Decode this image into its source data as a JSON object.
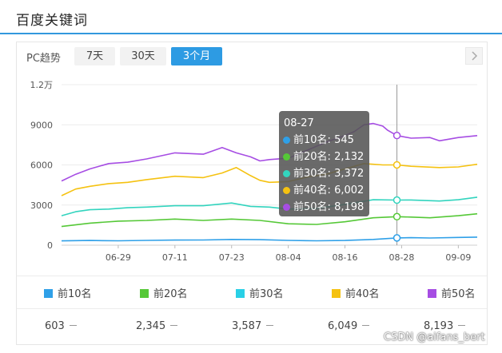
{
  "panel": {
    "title": "百度关键词"
  },
  "toolbar": {
    "device_label": "PC趋势",
    "tabs": [
      {
        "label": "7天",
        "active": false
      },
      {
        "label": "30天",
        "active": false
      },
      {
        "label": "3个月",
        "active": true
      }
    ],
    "next_icon": "chevron-right-icon"
  },
  "chart_data": {
    "type": "line",
    "title": "",
    "xlabel": "",
    "ylabel": "",
    "ylim": [
      0,
      12000
    ],
    "y_ticks": [
      0,
      3000,
      6000,
      9000,
      12000
    ],
    "y_tick_labels": [
      "0",
      "3000",
      "6000",
      "9000",
      "1.2万"
    ],
    "grid": true,
    "x_start": "06-17",
    "x_end": "09-13",
    "x_ticks": [
      {
        "day": 12,
        "label": "06-29"
      },
      {
        "day": 24,
        "label": "07-11"
      },
      {
        "day": 36,
        "label": "07-23"
      },
      {
        "day": 48,
        "label": "08-04"
      },
      {
        "day": 60,
        "label": "08-16"
      },
      {
        "day": 72,
        "label": "08-28"
      },
      {
        "day": 84,
        "label": "09-09"
      }
    ],
    "series": [
      {
        "name": "前10名",
        "color": "#2fa0e8",
        "x": [
          0,
          6,
          12,
          18,
          24,
          30,
          36,
          42,
          48,
          54,
          60,
          66,
          71,
          74,
          78,
          84,
          88
        ],
        "values": [
          320,
          350,
          330,
          360,
          380,
          390,
          430,
          410,
          360,
          330,
          350,
          430,
          545,
          560,
          540,
          580,
          603
        ]
      },
      {
        "name": "前20名",
        "color": "#55c837",
        "x": [
          0,
          6,
          12,
          18,
          24,
          30,
          36,
          42,
          48,
          54,
          60,
          66,
          71,
          74,
          78,
          84,
          88
        ],
        "values": [
          1400,
          1650,
          1800,
          1850,
          1950,
          1850,
          1950,
          1850,
          1600,
          1550,
          1750,
          2050,
          2132,
          2100,
          2050,
          2200,
          2345
        ]
      },
      {
        "name": "前30名",
        "color": "#32d4be",
        "x": [
          0,
          3,
          6,
          10,
          14,
          18,
          24,
          30,
          36,
          40,
          44,
          48,
          54,
          60,
          66,
          71,
          74,
          80,
          84,
          88
        ],
        "values": [
          2200,
          2500,
          2650,
          2700,
          2800,
          2850,
          2950,
          2950,
          3150,
          2900,
          2850,
          2700,
          2750,
          3050,
          3400,
          3372,
          3380,
          3300,
          3400,
          3587
        ]
      },
      {
        "name": "前40名",
        "color": "#f5c211",
        "x": [
          0,
          3,
          6,
          10,
          14,
          18,
          24,
          30,
          34,
          37,
          40,
          42,
          44,
          48,
          52,
          56,
          60,
          64,
          68,
          71,
          74,
          80,
          84,
          88
        ],
        "values": [
          3700,
          4200,
          4400,
          4600,
          4700,
          4900,
          5150,
          5050,
          5400,
          5800,
          5200,
          4850,
          4700,
          4750,
          5100,
          5300,
          5700,
          6100,
          6000,
          6002,
          5900,
          5800,
          5850,
          6049
        ]
      },
      {
        "name": "前50名",
        "color": "#a64de3",
        "x": [
          0,
          3,
          6,
          10,
          14,
          18,
          24,
          30,
          34,
          37,
          40,
          42,
          44,
          48,
          52,
          56,
          60,
          62,
          64,
          66,
          68,
          69,
          71,
          74,
          78,
          80,
          84,
          88
        ],
        "values": [
          4800,
          5300,
          5700,
          6100,
          6200,
          6450,
          6900,
          6800,
          7300,
          6900,
          6600,
          6300,
          6400,
          6500,
          7100,
          7700,
          8200,
          8500,
          9000,
          9100,
          8900,
          8600,
          8198,
          8000,
          8050,
          7800,
          8050,
          8193
        ]
      }
    ],
    "hover": {
      "x": 71,
      "date": "08-27",
      "rows": [
        {
          "name": "前10名",
          "value": "545",
          "color": "#2fa0e8"
        },
        {
          "name": "前20名",
          "value": "2,132",
          "color": "#55c837"
        },
        {
          "name": "前30名",
          "value": "3,372",
          "color": "#32d4be"
        },
        {
          "name": "前40名",
          "value": "6,002",
          "color": "#f5c211"
        },
        {
          "name": "前50名",
          "value": "8,198",
          "color": "#a64de3"
        }
      ]
    }
  },
  "legend": [
    {
      "label": "前10名",
      "color": "#2fa0e8",
      "value": "603"
    },
    {
      "label": "前20名",
      "color": "#55c837",
      "value": "2,345"
    },
    {
      "label": "前30名",
      "color": "#29d0e6",
      "value": "3,587"
    },
    {
      "label": "前40名",
      "color": "#f5c211",
      "value": "6,049"
    },
    {
      "label": "前50名",
      "color": "#a64de3",
      "value": "8,193"
    }
  ],
  "watermark": "CSDN @aifans_bert"
}
